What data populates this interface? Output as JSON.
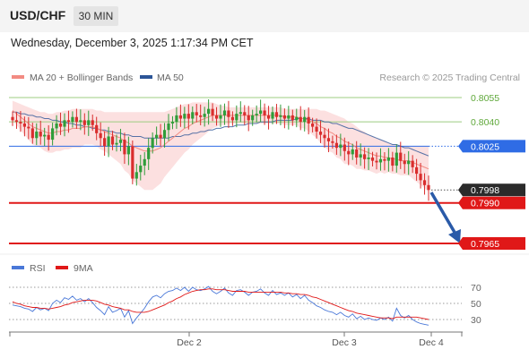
{
  "header": {
    "symbol": "USD/CHF",
    "timeframe": "30 MIN"
  },
  "datetime": "Wednesday, December 3, 2025 1:17:34 PM CET",
  "legend": {
    "items": [
      {
        "label": "MA 20 + Bollinger Bands",
        "color": "#f28b82"
      },
      {
        "label": "MA 50",
        "color": "#2c5597"
      }
    ],
    "credit": "Research © 2025 Trading Central"
  },
  "levels": [
    {
      "label": "0.8055",
      "value": 0.8055,
      "kind": "resistance-green",
      "line_color": "#9ccc80"
    },
    {
      "label": "0.8040",
      "value": 0.804,
      "kind": "resistance-green",
      "line_color": "#9ccc80"
    },
    {
      "label": "0.8025",
      "value": 0.8025,
      "kind": "pivot",
      "line_color": "#2f6ce5",
      "badge_color": "#2f6ce5"
    },
    {
      "label": "0.7998",
      "value": 0.7998,
      "kind": "last-price",
      "badge_color": "#2b2b2b"
    },
    {
      "label": "0.7990",
      "value": 0.799,
      "kind": "support",
      "line_color": "#e01818",
      "badge_color": "#e01818"
    },
    {
      "label": "0.7965",
      "value": 0.7965,
      "kind": "support",
      "line_color": "#e01818",
      "badge_color": "#e01818"
    }
  ],
  "rsi_panel": {
    "legend": [
      {
        "label": "RSI",
        "color": "#4a78d8"
      },
      {
        "label": "9MA",
        "color": "#e01818"
      }
    ],
    "levels": [
      {
        "label": "70",
        "value": 70
      },
      {
        "label": "50",
        "value": 50
      },
      {
        "label": "30",
        "value": 30
      }
    ]
  },
  "x_axis": {
    "labels": [
      "Dec 2",
      "Dec 3",
      "Dec 4"
    ]
  },
  "chart_data": {
    "type": "candlestick",
    "price_range": [
      0.7965,
      0.8065
    ],
    "close": [
      0.8041,
      0.804,
      0.8039,
      0.8037,
      0.8036,
      0.803,
      0.8034,
      0.8031,
      0.8032,
      0.8029,
      0.8036,
      0.8039,
      0.8037,
      0.8041,
      0.804,
      0.8043,
      0.804,
      0.8041,
      0.8038,
      0.8041,
      0.8038,
      0.8033,
      0.803,
      0.8025,
      0.8031,
      0.8026,
      0.8027,
      0.8029,
      0.802,
      0.8025,
      0.8005,
      0.8009,
      0.8013,
      0.8017,
      0.8024,
      0.803,
      0.8032,
      0.803,
      0.8035,
      0.8039,
      0.804,
      0.8044,
      0.8042,
      0.8045,
      0.8042,
      0.8046,
      0.8044,
      0.8043,
      0.8045,
      0.8048,
      0.8044,
      0.8042,
      0.8044,
      0.8047,
      0.8043,
      0.8041,
      0.8045,
      0.8046,
      0.8044,
      0.8041,
      0.8044,
      0.8045,
      0.8047,
      0.8044,
      0.8042,
      0.8046,
      0.8043,
      0.8044,
      0.8042,
      0.8044,
      0.8041,
      0.8043,
      0.804,
      0.8043,
      0.8039,
      0.8037,
      0.8034,
      0.8032,
      0.803,
      0.8028,
      0.8027,
      0.8024,
      0.8026,
      0.8022,
      0.802,
      0.8023,
      0.8018,
      0.802,
      0.8017,
      0.8018,
      0.8016,
      0.8015,
      0.8017,
      0.8016,
      0.8018,
      0.8013,
      0.8021,
      0.8016,
      0.8014,
      0.8016,
      0.8012,
      0.8008,
      0.8004,
      0.8001,
      0.7998
    ],
    "high_low_note": "wicks approximated from candle bodies",
    "ma20": [
      0.8047,
      0.8045,
      0.8043,
      0.8041,
      0.8039,
      0.8037,
      0.8036,
      0.8035,
      0.8034,
      0.8033,
      0.8033,
      0.8034,
      0.8034,
      0.8035,
      0.8035,
      0.8036,
      0.8036,
      0.8036,
      0.8037,
      0.8037,
      0.8037,
      0.8036,
      0.8035,
      0.8034,
      0.8033,
      0.8032,
      0.8031,
      0.803,
      0.8028,
      0.8027,
      0.8025,
      0.8024,
      0.8023,
      0.8022,
      0.8022,
      0.8022,
      0.8023,
      0.8024,
      0.8026,
      0.8028,
      0.803,
      0.8032,
      0.8034,
      0.8036,
      0.8037,
      0.8039,
      0.804,
      0.8041,
      0.8042,
      0.8043,
      0.8044,
      0.8044,
      0.8044,
      0.8044,
      0.8044,
      0.8044,
      0.8044,
      0.8044,
      0.8044,
      0.8044,
      0.8044,
      0.8044,
      0.8044,
      0.8044,
      0.8044,
      0.8044,
      0.8044,
      0.8044,
      0.8043,
      0.8043,
      0.8043,
      0.8043,
      0.8042,
      0.8042,
      0.8041,
      0.804,
      0.8039,
      0.8037,
      0.8036,
      0.8034,
      0.8033,
      0.8031,
      0.803,
      0.8028,
      0.8027,
      0.8026,
      0.8024,
      0.8023,
      0.8022,
      0.8021,
      0.802,
      0.8019,
      0.8019,
      0.8018,
      0.8018,
      0.8017,
      0.8017,
      0.8016,
      0.8016,
      0.8016,
      0.8015,
      0.8014,
      0.8013,
      0.8012,
      0.8011
    ],
    "ma50": [
      0.8046,
      0.8046,
      0.8045,
      0.8045,
      0.8044,
      0.8044,
      0.8043,
      0.8043,
      0.8042,
      0.8042,
      0.8041,
      0.8041,
      0.804,
      0.804,
      0.8039,
      0.8039,
      0.8038,
      0.8038,
      0.8037,
      0.8037,
      0.8036,
      0.8036,
      0.8035,
      0.8035,
      0.8034,
      0.8034,
      0.8033,
      0.8033,
      0.8032,
      0.8032,
      0.8031,
      0.8031,
      0.8031,
      0.803,
      0.803,
      0.803,
      0.803,
      0.803,
      0.803,
      0.803,
      0.8031,
      0.8031,
      0.8031,
      0.8032,
      0.8032,
      0.8033,
      0.8033,
      0.8034,
      0.8034,
      0.8035,
      0.8035,
      0.8036,
      0.8036,
      0.8037,
      0.8037,
      0.8037,
      0.8038,
      0.8038,
      0.8038,
      0.8039,
      0.8039,
      0.8039,
      0.804,
      0.804,
      0.804,
      0.804,
      0.8041,
      0.8041,
      0.8041,
      0.8041,
      0.8041,
      0.8042,
      0.8042,
      0.8042,
      0.8042,
      0.8041,
      0.8041,
      0.8041,
      0.804,
      0.804,
      0.8039,
      0.8039,
      0.8038,
      0.8037,
      0.8036,
      0.8036,
      0.8035,
      0.8034,
      0.8033,
      0.8032,
      0.8031,
      0.803,
      0.8029,
      0.8028,
      0.8027,
      0.8026,
      0.8026,
      0.8025,
      0.8024,
      0.8024,
      0.8023,
      0.8022,
      0.8021,
      0.802,
      0.8019
    ],
    "bb_upper": [
      0.8053,
      0.8052,
      0.8051,
      0.805,
      0.8049,
      0.8048,
      0.8047,
      0.8046,
      0.8046,
      0.8045,
      0.8045,
      0.8046,
      0.8046,
      0.8047,
      0.8047,
      0.8048,
      0.8048,
      0.8048,
      0.8048,
      0.8048,
      0.8048,
      0.8047,
      0.8047,
      0.8046,
      0.8046,
      0.8046,
      0.8046,
      0.8046,
      0.8046,
      0.8046,
      0.8046,
      0.8046,
      0.8046,
      0.8046,
      0.8046,
      0.8046,
      0.8046,
      0.8046,
      0.8046,
      0.8047,
      0.8048,
      0.8049,
      0.805,
      0.8051,
      0.8051,
      0.8052,
      0.8052,
      0.8052,
      0.8052,
      0.8052,
      0.8052,
      0.8051,
      0.805,
      0.805,
      0.8049,
      0.8049,
      0.8049,
      0.8049,
      0.8049,
      0.8049,
      0.8049,
      0.8049,
      0.8049,
      0.8049,
      0.8049,
      0.8049,
      0.8049,
      0.8049,
      0.8048,
      0.8048,
      0.8048,
      0.8048,
      0.8048,
      0.8048,
      0.8048,
      0.8048,
      0.8048,
      0.8047,
      0.8047,
      0.8046,
      0.8045,
      0.8044,
      0.8043,
      0.8042,
      0.804,
      0.8039,
      0.8037,
      0.8035,
      0.8034,
      0.8032,
      0.8031,
      0.803,
      0.8029,
      0.8028,
      0.8027,
      0.8026,
      0.8026,
      0.8025,
      0.8025,
      0.8025,
      0.8025,
      0.8025,
      0.8025,
      0.8025,
      0.8025
    ],
    "bb_lower": [
      0.8041,
      0.8038,
      0.8035,
      0.8032,
      0.8029,
      0.8026,
      0.8025,
      0.8024,
      0.8022,
      0.8021,
      0.8021,
      0.8022,
      0.8022,
      0.8023,
      0.8023,
      0.8024,
      0.8024,
      0.8024,
      0.8026,
      0.8026,
      0.8026,
      0.8025,
      0.8023,
      0.8022,
      0.802,
      0.8018,
      0.8016,
      0.8014,
      0.801,
      0.8008,
      0.8004,
      0.8002,
      0.8,
      0.7998,
      0.7998,
      0.7998,
      0.8,
      0.8002,
      0.8006,
      0.8009,
      0.8012,
      0.8015,
      0.8018,
      0.8021,
      0.8023,
      0.8026,
      0.8028,
      0.803,
      0.8032,
      0.8034,
      0.8036,
      0.8037,
      0.8038,
      0.8038,
      0.8039,
      0.8039,
      0.8039,
      0.8039,
      0.8039,
      0.8039,
      0.8039,
      0.8039,
      0.8039,
      0.8039,
      0.8039,
      0.8039,
      0.8039,
      0.8039,
      0.8038,
      0.8038,
      0.8038,
      0.8038,
      0.8036,
      0.8036,
      0.8034,
      0.8032,
      0.803,
      0.8027,
      0.8025,
      0.8022,
      0.8021,
      0.8018,
      0.8017,
      0.8014,
      0.8014,
      0.8013,
      0.8011,
      0.8011,
      0.801,
      0.801,
      0.8009,
      0.8008,
      0.8009,
      0.8008,
      0.8009,
      0.8008,
      0.8008,
      0.8007,
      0.8007,
      0.8007,
      0.8005,
      0.8003,
      0.8001,
      0.7999,
      0.7997
    ],
    "rsi": [
      48,
      47,
      46,
      44,
      43,
      40,
      45,
      42,
      44,
      41,
      50,
      54,
      51,
      57,
      55,
      59,
      54,
      56,
      52,
      56,
      51,
      45,
      41,
      36,
      46,
      39,
      41,
      44,
      33,
      41,
      25,
      32,
      38,
      44,
      52,
      58,
      60,
      57,
      62,
      65,
      66,
      69,
      66,
      70,
      65,
      70,
      67,
      66,
      68,
      71,
      65,
      62,
      65,
      69,
      63,
      60,
      66,
      67,
      64,
      60,
      64,
      65,
      68,
      63,
      60,
      66,
      61,
      63,
      60,
      63,
      58,
      61,
      56,
      60,
      54,
      51,
      47,
      45,
      42,
      40,
      39,
      36,
      39,
      35,
      33,
      37,
      31,
      34,
      30,
      32,
      30,
      29,
      32,
      30,
      33,
      28,
      44,
      35,
      32,
      35,
      30,
      27,
      25,
      24,
      23
    ],
    "rsi_ma": [
      52,
      50,
      49,
      47,
      46,
      45,
      45,
      44,
      44,
      43,
      44,
      45,
      46,
      48,
      49,
      51,
      52,
      53,
      54,
      54,
      54,
      53,
      51,
      49,
      48,
      46,
      45,
      44,
      42,
      42,
      40,
      39,
      39,
      39,
      40,
      42,
      44,
      46,
      48,
      51,
      53,
      56,
      58,
      61,
      63,
      65,
      66,
      67,
      67,
      68,
      68,
      67,
      67,
      67,
      66,
      65,
      65,
      65,
      65,
      64,
      64,
      64,
      64,
      64,
      64,
      64,
      64,
      64,
      63,
      63,
      62,
      62,
      61,
      61,
      60,
      58,
      57,
      55,
      53,
      51,
      49,
      47,
      45,
      43,
      41,
      40,
      38,
      37,
      36,
      35,
      34,
      33,
      32,
      32,
      32,
      31,
      33,
      33,
      33,
      33,
      33,
      33,
      32,
      31,
      30
    ],
    "rsi_range": [
      20,
      80
    ]
  }
}
